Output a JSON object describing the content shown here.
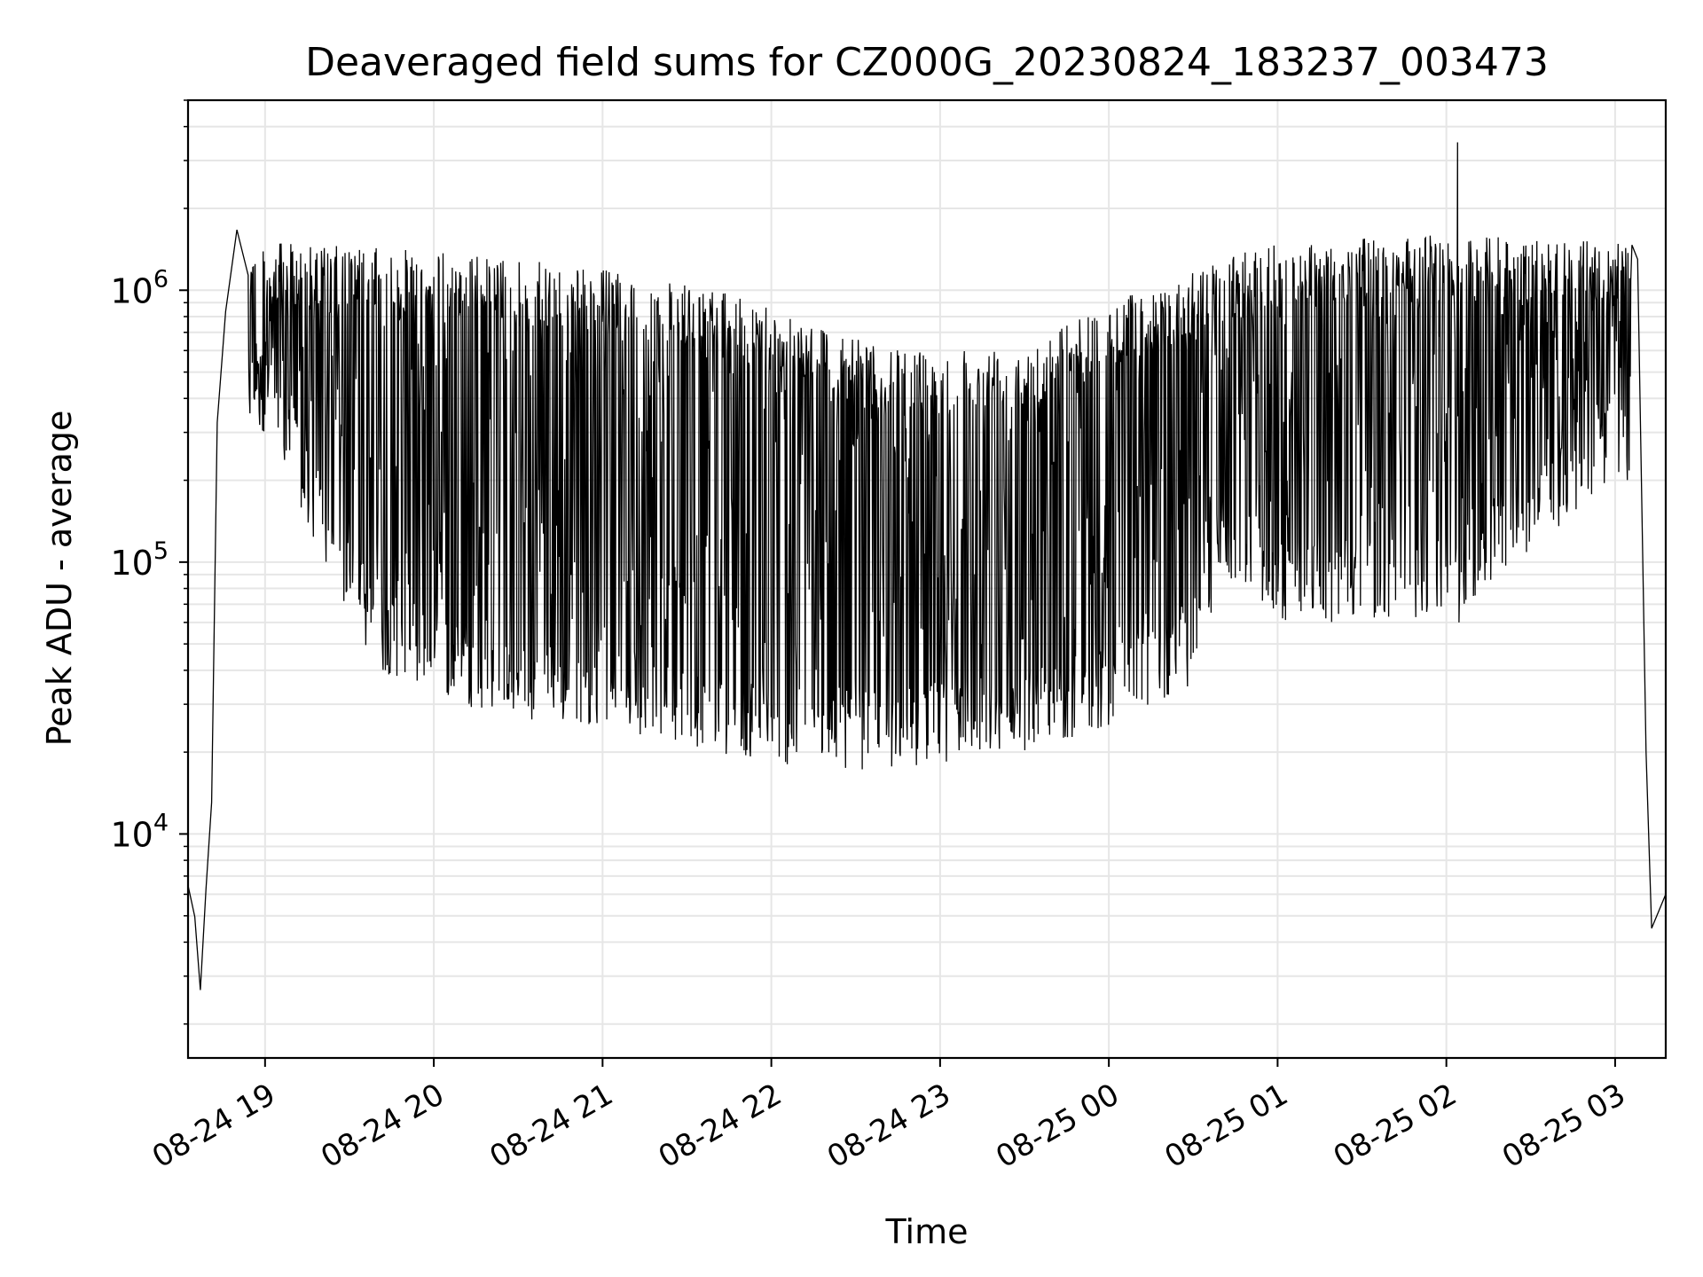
{
  "chart_data": {
    "type": "line",
    "title": "Deaveraged field sums for CZ000G_20230824_183237_003473",
    "xlabel": "Time",
    "ylabel": "Peak ADU - average",
    "y_scale": "log",
    "ylim": [
      1500,
      5000000
    ],
    "xlim": [
      "2023-08-24 18:32:37",
      "2023-08-25 03:18:00"
    ],
    "grid": true,
    "line_color": "#000000",
    "grid_color": "#e6e6e6",
    "y_ticks": [
      {
        "value": 10000,
        "base": "10",
        "exp": "4"
      },
      {
        "value": 100000,
        "base": "10",
        "exp": "5"
      },
      {
        "value": 1000000,
        "base": "10",
        "exp": "6"
      }
    ],
    "x_ticks": [
      {
        "time": "2023-08-24 19:00",
        "label": "08-24 19"
      },
      {
        "time": "2023-08-24 20:00",
        "label": "08-24 20"
      },
      {
        "time": "2023-08-24 21:00",
        "label": "08-24 21"
      },
      {
        "time": "2023-08-24 22:00",
        "label": "08-24 22"
      },
      {
        "time": "2023-08-24 23:00",
        "label": "08-24 23"
      },
      {
        "time": "2023-08-25 00:00",
        "label": "08-25 00"
      },
      {
        "time": "2023-08-25 01:00",
        "label": "08-25 01"
      },
      {
        "time": "2023-08-25 02:00",
        "label": "08-25 02"
      },
      {
        "time": "2023-08-25 03:00",
        "label": "08-25 03"
      }
    ],
    "series": [
      {
        "description_points": [
          {
            "time": "2023-08-24 18:32:37",
            "y": 6000
          },
          {
            "time": "2023-08-24 18:35:00",
            "y": 5500
          },
          {
            "time": "2023-08-24 18:37:00",
            "y": 2500
          },
          {
            "time": "2023-08-24 18:39:00",
            "y": 5000
          },
          {
            "time": "2023-08-24 18:41:00",
            "y": 12000
          },
          {
            "time": "2023-08-24 18:43:00",
            "y": 300000
          },
          {
            "time": "2023-08-24 18:46:00",
            "y": 1000000
          },
          {
            "time": "2023-08-24 18:50:00",
            "y": 1400000
          },
          {
            "time": "2023-08-24 18:54:00",
            "y": 500000
          },
          {
            "time": "2023-08-24 19:30:00",
            "y": 700000
          },
          {
            "time": "2023-08-24 20:00:00",
            "y": 400000
          },
          {
            "time": "2023-08-24 21:00:00",
            "y": 200000
          },
          {
            "time": "2023-08-24 22:00:00",
            "y": 150000
          },
          {
            "time": "2023-08-24 22:45:00",
            "y": 80000
          },
          {
            "time": "2023-08-24 23:30:00",
            "y": 110000
          },
          {
            "time": "2023-08-25 00:00:00",
            "y": 200000
          },
          {
            "time": "2023-08-25 01:00:00",
            "y": 450000
          },
          {
            "time": "2023-08-25 02:00:00",
            "y": 650000
          },
          {
            "time": "2023-08-25 02:04:00",
            "y": 3500000
          },
          {
            "time": "2023-08-25 03:00:00",
            "y": 600000
          },
          {
            "time": "2023-08-25 03:08:00",
            "y": 1300000
          },
          {
            "time": "2023-08-25 03:11:00",
            "y": 20000
          },
          {
            "time": "2023-08-25 03:13:00",
            "y": 4500
          },
          {
            "time": "2023-08-25 03:18:00",
            "y": 6000
          }
        ],
        "band_upper": [
          {
            "time": "2023-08-24 19:00",
            "y": 1500000
          },
          {
            "time": "2023-08-24 20:00",
            "y": 1400000
          },
          {
            "time": "2023-08-24 21:00",
            "y": 1200000
          },
          {
            "time": "2023-08-24 22:00",
            "y": 900000
          },
          {
            "time": "2023-08-24 22:40",
            "y": 600000
          },
          {
            "time": "2023-08-24 23:30",
            "y": 650000
          },
          {
            "time": "2023-08-25 00:00",
            "y": 900000
          },
          {
            "time": "2023-08-25 00:40",
            "y": 1300000
          },
          {
            "time": "2023-08-25 01:00",
            "y": 1500000
          },
          {
            "time": "2023-08-25 02:00",
            "y": 1600000
          },
          {
            "time": "2023-08-25 03:00",
            "y": 1500000
          }
        ],
        "band_lower": [
          {
            "time": "2023-08-24 19:00",
            "y": 300000
          },
          {
            "time": "2023-08-24 19:20",
            "y": 100000
          },
          {
            "time": "2023-08-24 19:40",
            "y": 40000
          },
          {
            "time": "2023-08-24 20:30",
            "y": 25000
          },
          {
            "time": "2023-08-24 21:00",
            "y": 25000
          },
          {
            "time": "2023-08-24 22:00",
            "y": 18000
          },
          {
            "time": "2023-08-24 22:40",
            "y": 17000
          },
          {
            "time": "2023-08-24 23:30",
            "y": 20000
          },
          {
            "time": "2023-08-25 00:00",
            "y": 25000
          },
          {
            "time": "2023-08-25 00:30",
            "y": 35000
          },
          {
            "time": "2023-08-25 00:40",
            "y": 90000
          },
          {
            "time": "2023-08-25 01:00",
            "y": 60000
          },
          {
            "time": "2023-08-25 02:00",
            "y": 60000
          },
          {
            "time": "2023-08-25 03:00",
            "y": 200000
          }
        ]
      }
    ]
  }
}
